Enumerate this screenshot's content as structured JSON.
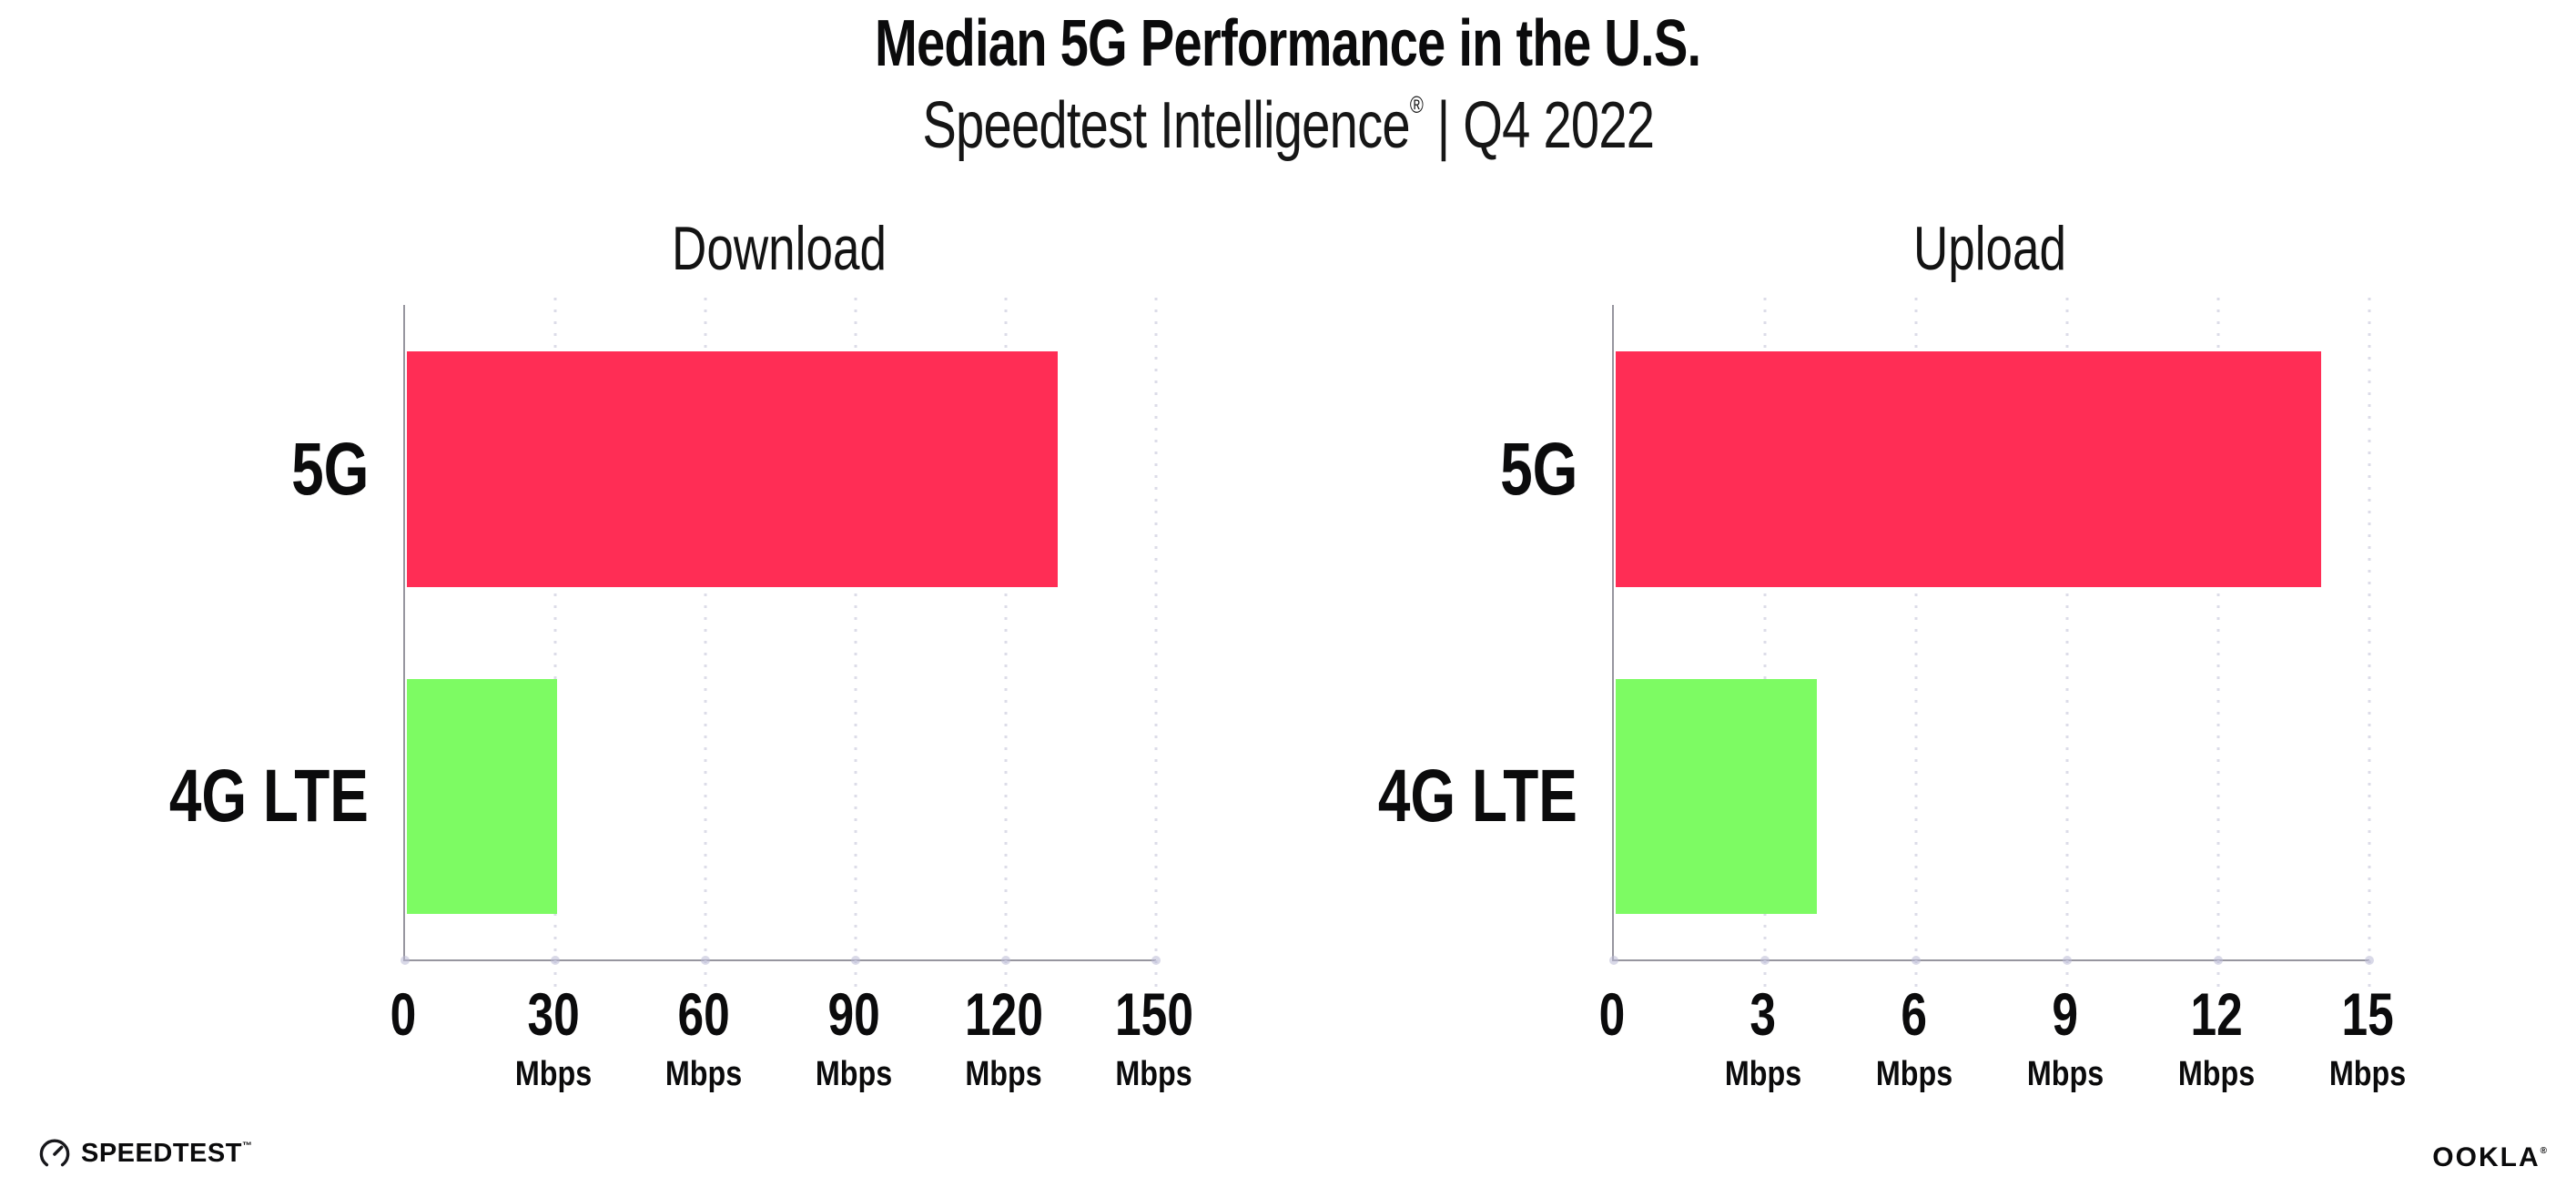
{
  "header": {
    "title": "Median 5G Performance in the U.S.",
    "subtitle_product": "Speedtest Intelligence",
    "subtitle_reg": "®",
    "subtitle_rest": " | Q4 2022"
  },
  "footer": {
    "speedtest_wordmark": "SPEEDTEST",
    "speedtest_mark": "™",
    "ookla_wordmark": "OOKLA",
    "ookla_mark": "®"
  },
  "colors": {
    "bar_5g": "#FF2D55",
    "bar_4g_lte": "#7DFB63",
    "axis": "#97969F",
    "gridline_dots": "#DCDCE8",
    "text": "#0B0B0C"
  },
  "chart_data": [
    {
      "type": "bar",
      "orientation": "horizontal",
      "title": "Download",
      "categories": [
        "5G",
        "4G LTE"
      ],
      "values": [
        130,
        30
      ],
      "unit": "Mbps",
      "xlim": [
        0,
        150
      ],
      "xticks": [
        0,
        30,
        60,
        90,
        120,
        150
      ],
      "bar_colors": [
        "#FF2D55",
        "#7DFB63"
      ],
      "grid": "vertical-dotted",
      "legend": "none"
    },
    {
      "type": "bar",
      "orientation": "horizontal",
      "title": "Upload",
      "categories": [
        "5G",
        "4G LTE"
      ],
      "values": [
        14,
        4
      ],
      "unit": "Mbps",
      "xlim": [
        0,
        15
      ],
      "xticks": [
        0,
        3,
        6,
        9,
        12,
        15
      ],
      "bar_colors": [
        "#FF2D55",
        "#7DFB63"
      ],
      "grid": "vertical-dotted",
      "legend": "none"
    }
  ]
}
